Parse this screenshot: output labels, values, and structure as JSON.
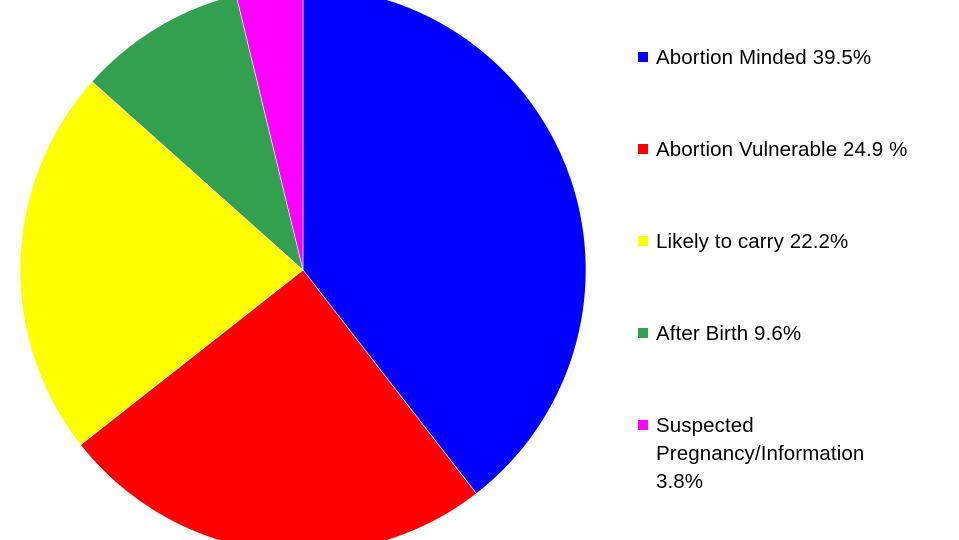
{
  "chart_data": {
    "type": "pie",
    "title": "",
    "slices": [
      {
        "label": "Abortion Minded",
        "value": 39.5,
        "color": "#0000ff",
        "legend_text": "Abortion Minded 39.5%"
      },
      {
        "label": "Abortion Vulnerable",
        "value": 24.9,
        "color": "#ff0000",
        "legend_text": "Abortion Vulnerable 24.9 %"
      },
      {
        "label": "Likely to carry",
        "value": 22.2,
        "color": "#ffff00",
        "legend_text": "Likely to carry 22.2%"
      },
      {
        "label": "After Birth",
        "value": 9.6,
        "color": "#33a050",
        "legend_text": "After Birth 9.6%"
      },
      {
        "label": "Suspected Pregnancy/Information",
        "value": 3.8,
        "color": "#ff00ff",
        "legend_text": "Suspected\nPregnancy/Information\n3.8%"
      }
    ],
    "start_angle": "12 o'clock",
    "direction": "clockwise",
    "legend_position": "right"
  }
}
